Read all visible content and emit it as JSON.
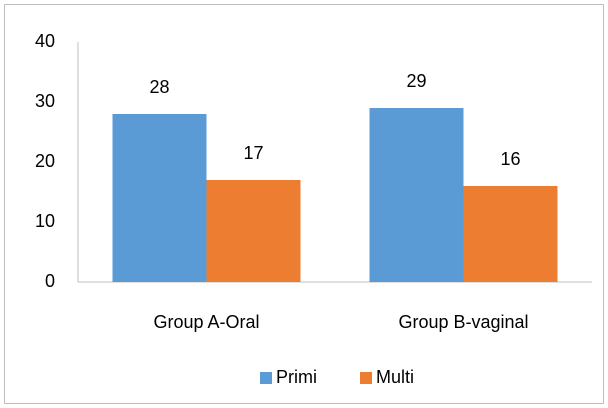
{
  "chart_data": {
    "type": "bar",
    "categories": [
      "Group A-Oral",
      "Group B-vaginal"
    ],
    "series": [
      {
        "name": "Primi",
        "color": "#5b9bd5",
        "values": [
          28,
          29
        ]
      },
      {
        "name": "Multi",
        "color": "#ed7d31",
        "values": [
          17,
          16
        ]
      }
    ],
    "ylim": [
      0,
      40
    ],
    "yticks": [
      0,
      10,
      20,
      30,
      40
    ],
    "grid": false,
    "legend": "bottom"
  }
}
